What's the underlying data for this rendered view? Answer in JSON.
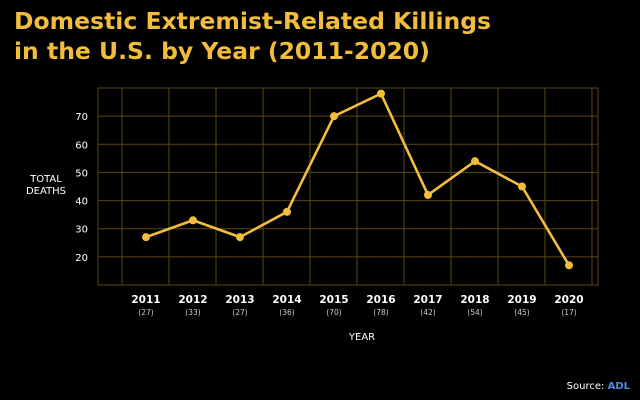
{
  "title_lines": [
    "Domestic Extremist-Related Killings",
    "in the U.S. by Year (2011-2020)"
  ],
  "colors": {
    "background": "#000000",
    "accent": "#f2bd3b",
    "grid": "#5a4714",
    "source_brand": "#4f8fe0"
  },
  "source": {
    "label": "Source:",
    "brand": "ADL"
  },
  "chart_data": {
    "type": "line",
    "title": "Domestic Extremist-Related Killings in the U.S. by Year (2011-2020)",
    "ylabel": [
      "TOTAL",
      "DEATHS"
    ],
    "xlabel": "YEAR",
    "categories": [
      "2011",
      "2012",
      "2013",
      "2014",
      "2015",
      "2016",
      "2017",
      "2018",
      "2019",
      "2020"
    ],
    "value_labels": [
      "(27)",
      "(33)",
      "(27)",
      "(36)",
      "(70)",
      "(78)",
      "(42)",
      "(54)",
      "(45)",
      "(17)"
    ],
    "values": [
      27,
      33,
      27,
      36,
      70,
      78,
      42,
      54,
      45,
      17
    ],
    "yticks": [
      20,
      30,
      40,
      50,
      60,
      70
    ],
    "ylim": [
      10,
      80
    ],
    "grid": true
  }
}
